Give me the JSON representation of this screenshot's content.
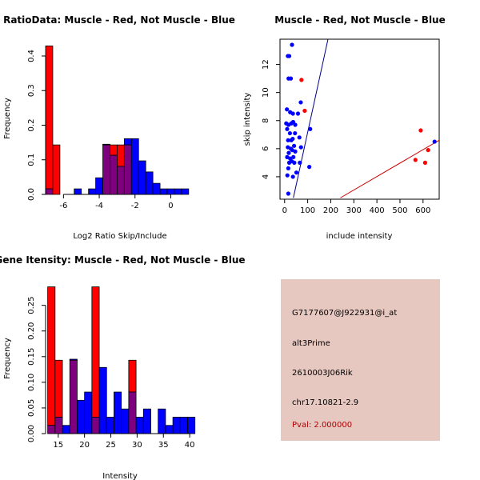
{
  "colors": {
    "red": "#ff0000",
    "blue": "#0000ff",
    "overlap": "#7f007f",
    "line_blue": "#00008b",
    "line_red": "#cc0000",
    "pval": "#b00000",
    "panel_bg": "#e6c8c0"
  },
  "info": {
    "probe": "G7177607@J922931@i_at",
    "event": "alt3Prime",
    "gene": "2610003J06Rik",
    "location": "chr17.10821-2.9",
    "pval": "Pval: 2.000000"
  },
  "chart_data": [
    {
      "id": "ratio-hist",
      "type": "bar",
      "title": "RatioData: Muscle - Red, Not Muscle - Blue",
      "xlabel": "Log2 Ratio Skip/Include",
      "ylabel": "Frequency",
      "xlim": [
        -7.0,
        1.5
      ],
      "ylim": [
        0,
        0.43
      ],
      "xticks": [
        -6,
        -4,
        -2,
        0
      ],
      "xtick_labels": [
        "-6",
        "-4",
        "-2",
        "0"
      ],
      "yticks": [
        0,
        0.1,
        0.2,
        0.3,
        0.4
      ],
      "ytick_labels": [
        "0.0",
        "0.1",
        "0.2",
        "0.3",
        "0.4"
      ],
      "bin_width": 0.4,
      "series": [
        {
          "name": "Muscle",
          "color": "red",
          "bins": [
            [
              -7.0,
              0.429
            ],
            [
              -6.6,
              0.143
            ],
            [
              -3.8,
              0.143
            ],
            [
              -3.4,
              0.143
            ],
            [
              -3.0,
              0.143
            ],
            [
              -2.6,
              0.143
            ]
          ]
        },
        {
          "name": "Not Muscle",
          "color": "blue",
          "bins": [
            [
              -7.0,
              0.016
            ],
            [
              -5.4,
              0.016
            ],
            [
              -4.6,
              0.016
            ],
            [
              -4.2,
              0.048
            ],
            [
              -3.8,
              0.145
            ],
            [
              -3.4,
              0.113
            ],
            [
              -3.0,
              0.081
            ],
            [
              -2.6,
              0.161
            ],
            [
              -2.2,
              0.161
            ],
            [
              -1.8,
              0.097
            ],
            [
              -1.4,
              0.065
            ],
            [
              -1.0,
              0.032
            ],
            [
              -0.6,
              0.016
            ],
            [
              -0.2,
              0.016
            ],
            [
              0.2,
              0.016
            ],
            [
              0.6,
              0.016
            ]
          ]
        }
      ]
    },
    {
      "id": "intensity-scatter",
      "type": "scatter",
      "title": "Muscle - Red, Not Muscle - Blue",
      "xlabel": "include intensity",
      "ylabel": "skip intensity",
      "xlim": [
        -20,
        670
      ],
      "ylim": [
        2.4,
        13.8
      ],
      "xticks": [
        0,
        100,
        200,
        300,
        400,
        500,
        600
      ],
      "xtick_labels": [
        "0",
        "100",
        "200",
        "300",
        "400",
        "500",
        "600"
      ],
      "yticks": [
        4,
        6,
        8,
        10,
        12
      ],
      "ytick_labels": [
        "4",
        "6",
        "8",
        "10",
        "12"
      ],
      "series": [
        {
          "name": "Muscle",
          "color": "red",
          "points": [
            [
              73,
              10.9
            ],
            [
              87,
              8.7
            ],
            [
              590,
              7.3
            ],
            [
              622,
              5.9
            ],
            [
              567,
              5.2
            ],
            [
              609,
              5.0
            ]
          ]
        },
        {
          "name": "Not Muscle",
          "color": "blue",
          "points": [
            [
              32,
              13.4
            ],
            [
              14,
              12.6
            ],
            [
              20,
              12.6
            ],
            [
              17,
              11.0
            ],
            [
              27,
              11.0
            ],
            [
              10,
              8.8
            ],
            [
              24,
              8.6
            ],
            [
              36,
              8.5
            ],
            [
              58,
              8.5
            ],
            [
              70,
              9.3
            ],
            [
              7,
              7.8
            ],
            [
              17,
              7.7
            ],
            [
              29,
              7.8
            ],
            [
              37,
              7.9
            ],
            [
              46,
              7.7
            ],
            [
              11,
              7.4
            ],
            [
              23,
              7.1
            ],
            [
              45,
              7.1
            ],
            [
              111,
              7.4
            ],
            [
              64,
              6.8
            ],
            [
              15,
              6.6
            ],
            [
              29,
              6.6
            ],
            [
              35,
              6.7
            ],
            [
              14,
              6.1
            ],
            [
              27,
              6.0
            ],
            [
              41,
              6.2
            ],
            [
              71,
              6.1
            ],
            [
              18,
              5.7
            ],
            [
              33,
              5.9
            ],
            [
              46,
              5.8
            ],
            [
              11,
              5.4
            ],
            [
              24,
              5.3
            ],
            [
              38,
              5.4
            ],
            [
              20,
              5.0
            ],
            [
              31,
              5.1
            ],
            [
              42,
              5.0
            ],
            [
              16,
              4.6
            ],
            [
              66,
              5.0
            ],
            [
              51,
              4.3
            ],
            [
              107,
              4.7
            ],
            [
              12,
              4.1
            ],
            [
              36,
              4.0
            ],
            [
              16,
              2.8
            ],
            [
              650,
              6.5
            ]
          ]
        }
      ],
      "lines": [
        {
          "color": "line_blue",
          "from": [
            38,
            2.5
          ],
          "to": [
            188,
            13.8
          ]
        },
        {
          "color": "line_red",
          "from": [
            242,
            2.5
          ],
          "to": [
            670,
            6.6
          ]
        }
      ]
    },
    {
      "id": "gene-intensity-hist",
      "type": "bar",
      "title": "Gene Itensity: Muscle - Red, Not Muscle - Blue",
      "xlabel": "Intensity",
      "ylabel": "Frequency",
      "xlim": [
        12.6,
        41.5
      ],
      "ylim": [
        0,
        0.29
      ],
      "xticks": [
        15,
        20,
        25,
        30,
        35,
        40
      ],
      "xtick_labels": [
        "15",
        "20",
        "25",
        "30",
        "35",
        "40"
      ],
      "yticks": [
        0,
        0.05,
        0.1,
        0.15,
        0.2,
        0.25
      ],
      "ytick_labels": [
        "0.00",
        "0.05",
        "0.10",
        "0.15",
        "0.20",
        "0.25"
      ],
      "bin_width": 1.4,
      "series": [
        {
          "name": "Muscle",
          "color": "red",
          "bins": [
            [
              13.0,
              0.286
            ],
            [
              14.4,
              0.143
            ],
            [
              17.2,
              0.143
            ],
            [
              21.4,
              0.286
            ],
            [
              28.4,
              0.143
            ]
          ]
        },
        {
          "name": "Not Muscle",
          "color": "blue",
          "bins": [
            [
              13.0,
              0.016
            ],
            [
              14.4,
              0.032
            ],
            [
              15.8,
              0.016
            ],
            [
              17.2,
              0.145
            ],
            [
              18.6,
              0.065
            ],
            [
              20.0,
              0.081
            ],
            [
              21.4,
              0.032
            ],
            [
              22.8,
              0.129
            ],
            [
              24.2,
              0.032
            ],
            [
              25.6,
              0.081
            ],
            [
              27.0,
              0.048
            ],
            [
              28.4,
              0.081
            ],
            [
              29.8,
              0.032
            ],
            [
              31.2,
              0.048
            ],
            [
              34.0,
              0.048
            ],
            [
              35.4,
              0.016
            ],
            [
              36.8,
              0.032
            ],
            [
              38.2,
              0.032
            ],
            [
              39.6,
              0.032
            ]
          ]
        }
      ]
    }
  ]
}
